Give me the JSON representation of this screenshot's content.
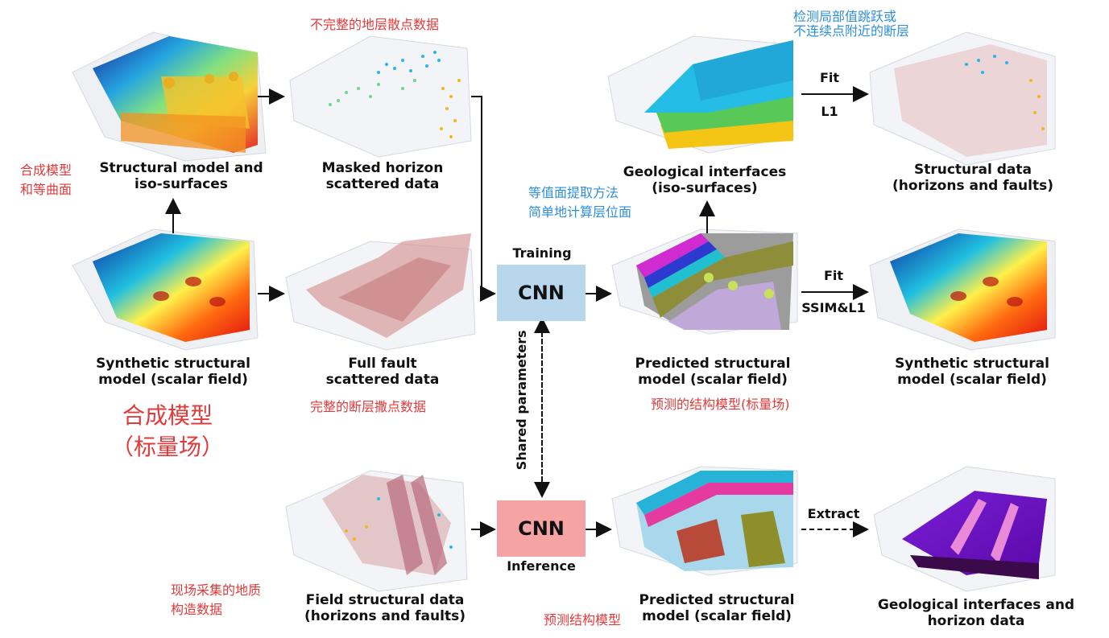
{
  "captions": {
    "structural_model": "Structural model and\niso-surfaces",
    "masked_horizon": "Masked  horizon\nscattered data",
    "geo_interfaces_top": "Geological interfaces\n(iso-surfaces)",
    "structural_data": "Structural data\n(horizons and faults)",
    "synthetic_left": "Synthetic structural\nmodel (scalar field)",
    "full_fault": "Full fault\nscattered data",
    "predicted_mid": "Predicted structural\nmodel (scalar field)",
    "synthetic_right": "Synthetic structural\nmodel (scalar field)",
    "field_data": "Field structural data\n(horizons and faults)",
    "predicted_bottom": "Predicted structural\nmodel (scalar field)",
    "geo_interfaces_bottom": "Geological interfaces and\nhorizon data"
  },
  "chinese_labels": {
    "incomplete_horizon": "不完整的地层散点数据",
    "detect_faults": "检测局部值跳跃或\n不连续点附近的断层",
    "synthetic_isosurface": "合成模型\n和等曲面",
    "isosurface_method": "等值面提取方法\n简单地计算层位面",
    "synthetic_big": "合成模型\n（标量场）",
    "complete_fault": "完整的断层撒点数据",
    "predicted_cn": "预测的结构模型(标量场)",
    "field_cn": "现场采集的地质\n构造数据",
    "predicted_bottom_cn": "预测结构模型"
  },
  "labels": {
    "training": "Training",
    "inference": "Inference",
    "cnn_top": "CNN",
    "cnn_bottom": "CNN",
    "shared_parameters": "Shared parameters",
    "fit_top": "Fit",
    "l1": "L1",
    "fit_mid": "Fit",
    "ssim_l1": "SSIM&L1",
    "extract": "Extract"
  },
  "colors": {
    "cnn_training": "#b9d7ec",
    "cnn_inference": "#f6a3a3",
    "red_text": "#e03a3a",
    "blue_text": "#2f8fd8"
  }
}
